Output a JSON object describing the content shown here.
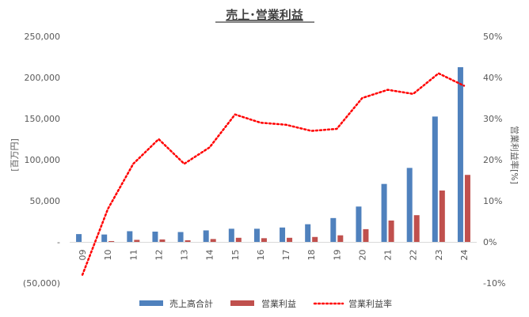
{
  "chart_data": {
    "type": "bar",
    "title": "売上･営業利益",
    "categories": [
      "09",
      "10",
      "11",
      "12",
      "13",
      "14",
      "15",
      "16",
      "17",
      "18",
      "19",
      "20",
      "21",
      "22",
      "23",
      "24"
    ],
    "series": [
      {
        "name": "売上高合計",
        "kind": "bar",
        "axis": "left",
        "color": "#4F81BD",
        "values": [
          9500,
          9000,
          13000,
          12500,
          12000,
          14000,
          16000,
          16000,
          17500,
          21500,
          29000,
          43000,
          70500,
          90000,
          152500,
          212500
        ]
      },
      {
        "name": "営業利益",
        "kind": "bar",
        "axis": "left",
        "color": "#C0504D",
        "values": [
          -500,
          1000,
          2500,
          3000,
          2000,
          3500,
          5000,
          4500,
          5000,
          6000,
          8000,
          15500,
          26000,
          32500,
          62500,
          81500
        ]
      },
      {
        "name": "営業利益率",
        "kind": "line",
        "axis": "right",
        "color": "#FF0000",
        "line_style": "dotted",
        "values": [
          -8,
          8,
          19,
          25,
          19,
          23,
          31,
          29,
          28.5,
          27,
          27.5,
          35,
          37,
          36,
          41,
          38
        ]
      }
    ],
    "y_left": {
      "label": "[百万円]",
      "min": -50000,
      "max": 250000,
      "step": 50000,
      "ticks": [
        "(50,000)",
        "-",
        "50,000",
        "100,000",
        "150,000",
        "200,000",
        "250,000"
      ]
    },
    "y_right": {
      "label": "営業利益率[%]",
      "min": -10,
      "max": 50,
      "step": 10,
      "ticks": [
        "-10%",
        "0%",
        "10%",
        "20%",
        "30%",
        "40%",
        "50%"
      ]
    },
    "grid": false,
    "legend_position": "bottom"
  }
}
